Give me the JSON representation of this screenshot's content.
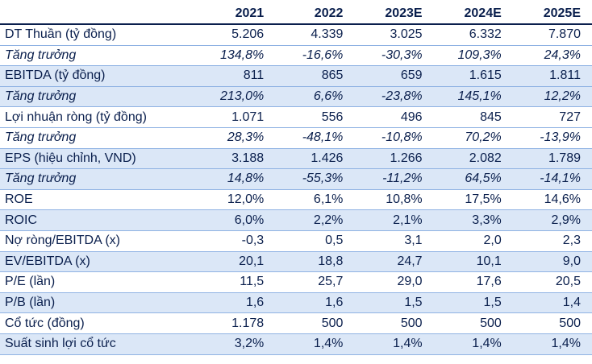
{
  "table": {
    "headers": [
      "",
      "2021",
      "2022",
      "2023E",
      "2024E",
      "2025E"
    ],
    "rows": [
      {
        "label": "DT Thuần (tỷ đồng)",
        "values": [
          "5.206",
          "4.339",
          "3.025",
          "6.332",
          "7.870"
        ],
        "italic": false,
        "shaded": false
      },
      {
        "label": "Tăng trưởng",
        "values": [
          "134,8%",
          "-16,6%",
          "-30,3%",
          "109,3%",
          "24,3%"
        ],
        "italic": true,
        "shaded": false
      },
      {
        "label": "EBITDA (tỷ đồng)",
        "values": [
          "811",
          "865",
          "659",
          "1.615",
          "1.811"
        ],
        "italic": false,
        "shaded": true
      },
      {
        "label": "Tăng trưởng",
        "values": [
          "213,0%",
          "6,6%",
          "-23,8%",
          "145,1%",
          "12,2%"
        ],
        "italic": true,
        "shaded": true
      },
      {
        "label": "Lợi nhuận ròng (tỷ đồng)",
        "values": [
          "1.071",
          "556",
          "496",
          "845",
          "727"
        ],
        "italic": false,
        "shaded": false
      },
      {
        "label": "Tăng trưởng",
        "values": [
          "28,3%",
          "-48,1%",
          "-10,8%",
          "70,2%",
          "-13,9%"
        ],
        "italic": true,
        "shaded": false
      },
      {
        "label": "EPS (hiệu chỉnh, VND)",
        "values": [
          "3.188",
          "1.426",
          "1.266",
          "2.082",
          "1.789"
        ],
        "italic": false,
        "shaded": true
      },
      {
        "label": "Tăng trưởng",
        "values": [
          "14,8%",
          "-55,3%",
          "-11,2%",
          "64,5%",
          "-14,1%"
        ],
        "italic": true,
        "shaded": true
      },
      {
        "label": "ROE",
        "values": [
          "12,0%",
          "6,1%",
          "10,8%",
          "17,5%",
          "14,6%"
        ],
        "italic": false,
        "shaded": false
      },
      {
        "label": "ROIC",
        "values": [
          "6,0%",
          "2,2%",
          "2,1%",
          "3,3%",
          "2,9%"
        ],
        "italic": false,
        "shaded": true
      },
      {
        "label": "Nợ ròng/EBITDA (x)",
        "values": [
          "-0,3",
          "0,5",
          "3,1",
          "2,0",
          "2,3"
        ],
        "italic": false,
        "shaded": false
      },
      {
        "label": "EV/EBITDA (x)",
        "values": [
          "20,1",
          "18,8",
          "24,7",
          "10,1",
          "9,0"
        ],
        "italic": false,
        "shaded": true
      },
      {
        "label": "P/E (lần)",
        "values": [
          "11,5",
          "25,7",
          "29,0",
          "17,6",
          "20,5"
        ],
        "italic": false,
        "shaded": false
      },
      {
        "label": "P/B (lần)",
        "values": [
          "1,6",
          "1,6",
          "1,5",
          "1,5",
          "1,4"
        ],
        "italic": false,
        "shaded": true
      },
      {
        "label": "Cổ tức (đồng)",
        "values": [
          "1.178",
          "500",
          "500",
          "500",
          "500"
        ],
        "italic": false,
        "shaded": false
      },
      {
        "label": "Suất sinh lợi cổ tức",
        "values": [
          "3,2%",
          "1,4%",
          "1,4%",
          "1,4%",
          "1,4%"
        ],
        "italic": false,
        "shaded": true
      }
    ]
  },
  "colors": {
    "text": "#0a1f4d",
    "shade": "#dbe7f7",
    "row_rule": "#8fb2e3"
  }
}
